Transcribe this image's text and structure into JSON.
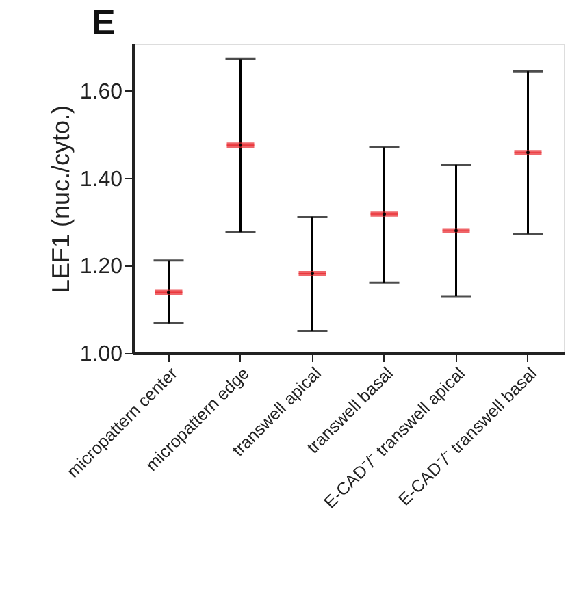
{
  "chart_data": {
    "type": "box",
    "title": "E",
    "ylabel": "LEF1 (nuc./cyto.)",
    "categories": [
      "micropattern center",
      "micropattern edge",
      "transwell apical",
      "transwell basal",
      "E-CAD⁻/⁻ transwell apical",
      "E-CAD⁻/⁻ transwell basal"
    ],
    "series": [
      {
        "color": "#e8242a",
        "boxes": [
          {
            "low": 1.068,
            "q1": 1.133,
            "median": 1.139,
            "q3": 1.145,
            "high": 1.212,
            "mean": 1.139
          },
          {
            "low": 1.277,
            "q1": 1.47,
            "median": 1.476,
            "q3": 1.482,
            "high": 1.673,
            "mean": 1.476
          },
          {
            "low": 1.051,
            "q1": 1.176,
            "median": 1.182,
            "q3": 1.188,
            "high": 1.312,
            "mean": 1.182
          },
          {
            "low": 1.161,
            "q1": 1.312,
            "median": 1.318,
            "q3": 1.324,
            "high": 1.471,
            "mean": 1.318
          },
          {
            "low": 1.13,
            "q1": 1.274,
            "median": 1.28,
            "q3": 1.286,
            "high": 1.431,
            "mean": 1.28
          },
          {
            "low": 1.273,
            "q1": 1.453,
            "median": 1.459,
            "q3": 1.465,
            "high": 1.645,
            "mean": 1.459
          }
        ]
      }
    ],
    "ylim": [
      1.0,
      1.708
    ],
    "yticks": [
      {
        "value": 1.0,
        "label": "1.00"
      },
      {
        "value": 1.2,
        "label": "1.20"
      },
      {
        "value": 1.4,
        "label": "1.40"
      },
      {
        "value": 1.6,
        "label": "1.60"
      }
    ],
    "grid": false,
    "legend": false
  }
}
